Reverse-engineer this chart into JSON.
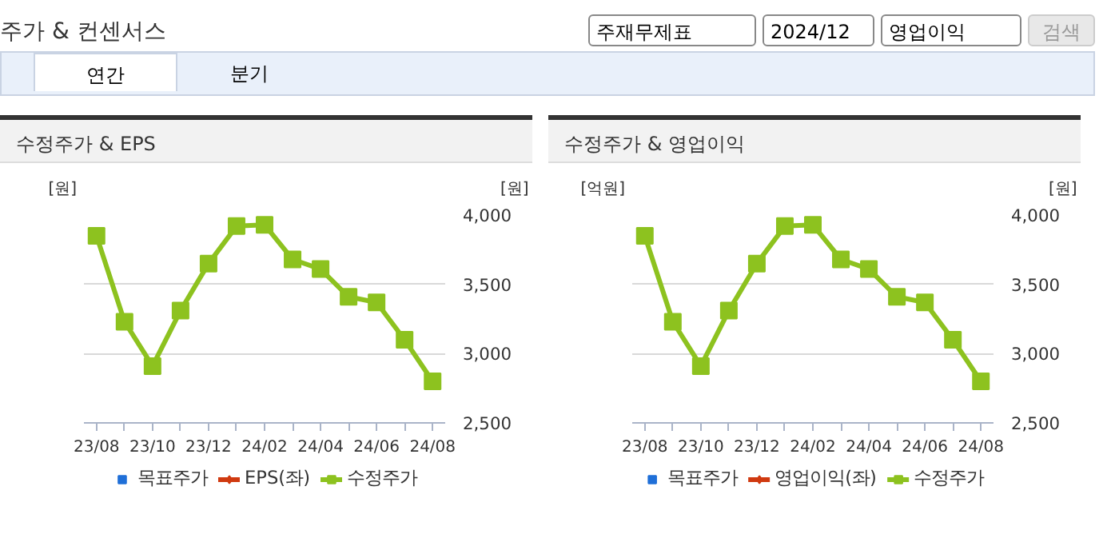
{
  "chart_data": [
    {
      "type": "other",
      "title": "주가 & 컨센서스",
      "annotations": [
        "주재무제표",
        "2024/12",
        "영업이익",
        "검색",
        "연간",
        "분기"
      ]
    },
    {
      "type": "line",
      "title": "수정주가 & EPS",
      "ylabel": "[원]",
      "y2label": "[원]",
      "categories": [
        "23/08",
        null,
        "23/10",
        null,
        "23/12",
        null,
        "24/02",
        null,
        "24/04",
        null,
        "24/06",
        null,
        "24/08"
      ],
      "y2lim": [
        2500,
        4000
      ],
      "y2ticks": [
        {
          "value": 2500,
          "label": "2,500"
        },
        {
          "value": 3000,
          "label": "3,000"
        },
        {
          "value": 3500,
          "label": "3,500"
        },
        {
          "value": 4000,
          "label": "4,000"
        }
      ],
      "grid": "y",
      "legend": "bottom",
      "series": [
        {
          "name": "목표주가",
          "type": "bar",
          "color": "#1f6fd8",
          "values": [
            null,
            null,
            null,
            null,
            null,
            null,
            null,
            null,
            null,
            null,
            null,
            null,
            null
          ]
        },
        {
          "name": "EPS(좌)",
          "type": "line",
          "marker": "diamond",
          "color": "#d03a10",
          "values": [
            null,
            null,
            null,
            null,
            null,
            null,
            null,
            null,
            null,
            null,
            null,
            null,
            null
          ]
        },
        {
          "name": "수정주가",
          "type": "line",
          "marker": "square",
          "axis": "y2",
          "color": "#8dc21f",
          "values": [
            3850,
            3230,
            2910,
            3310,
            3650,
            3920,
            3930,
            3680,
            3610,
            3410,
            3370,
            3100,
            2800
          ]
        }
      ]
    },
    {
      "type": "line",
      "title": "수정주가 & 영업이익",
      "ylabel": "[억원]",
      "y2label": "[원]",
      "categories": [
        "23/08",
        null,
        "23/10",
        null,
        "23/12",
        null,
        "24/02",
        null,
        "24/04",
        null,
        "24/06",
        null,
        "24/08"
      ],
      "y2lim": [
        2500,
        4000
      ],
      "y2ticks": [
        {
          "value": 2500,
          "label": "2,500"
        },
        {
          "value": 3000,
          "label": "3,000"
        },
        {
          "value": 3500,
          "label": "3,500"
        },
        {
          "value": 4000,
          "label": "4,000"
        }
      ],
      "grid": "y",
      "legend": "bottom",
      "series": [
        {
          "name": "목표주가",
          "type": "bar",
          "color": "#1f6fd8",
          "values": [
            null,
            null,
            null,
            null,
            null,
            null,
            null,
            null,
            null,
            null,
            null,
            null,
            null
          ]
        },
        {
          "name": "영업이익(좌)",
          "type": "line",
          "marker": "diamond",
          "color": "#d03a10",
          "values": [
            null,
            null,
            null,
            null,
            null,
            null,
            null,
            null,
            null,
            null,
            null,
            null,
            null
          ]
        },
        {
          "name": "수정주가",
          "type": "line",
          "marker": "square",
          "axis": "y2",
          "color": "#8dc21f",
          "values": [
            3850,
            3230,
            2910,
            3310,
            3650,
            3920,
            3930,
            3680,
            3610,
            3410,
            3370,
            3100,
            2800
          ]
        }
      ]
    }
  ]
}
